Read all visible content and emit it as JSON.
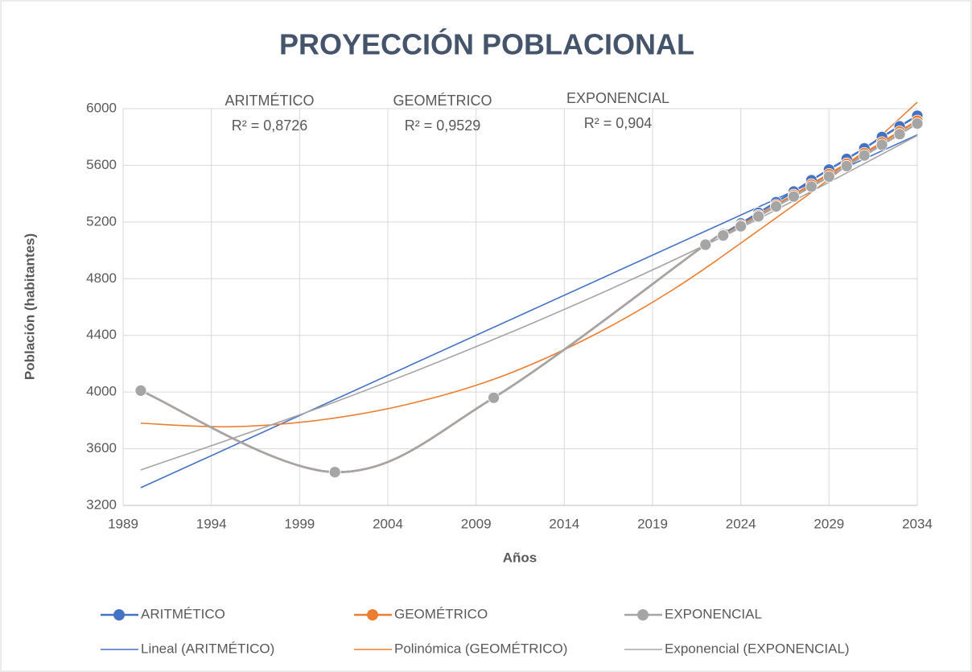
{
  "chart_data": {
    "type": "scatter",
    "title": "PROYECCIÓN POBLACIONAL",
    "x_label": "Años",
    "y_label": "Población (habitantes)",
    "xlim": [
      1989,
      2034
    ],
    "xticks": [
      1989,
      1994,
      1999,
      2004,
      2009,
      2014,
      2019,
      2024,
      2029,
      2034
    ],
    "ylim": [
      3200,
      6000
    ],
    "yticks": [
      3200,
      3600,
      4000,
      4400,
      4800,
      5200,
      5600,
      6000
    ],
    "grid": true,
    "legend": "bottom",
    "annotations": [
      {
        "lines": [
          "ARITMÉTICO",
          "R² = 0,8726"
        ]
      },
      {
        "lines": [
          "GEOMÉTRICO",
          "R² = 0,9529"
        ]
      },
      {
        "lines": [
          "EXPONENCIAL",
          "R² = 0,904"
        ]
      }
    ],
    "series": [
      {
        "name": "ARITMÉTICO",
        "color": "#4472c4",
        "style": "markers",
        "x": [
          1990,
          2001,
          2010,
          2022,
          2023,
          2024,
          2025,
          2026,
          2027,
          2028,
          2029,
          2030,
          2031,
          2032,
          2033,
          2034
        ],
        "values": [
          4010,
          3435,
          3960,
          5040,
          5115,
          5190,
          5265,
          5340,
          5415,
          5495,
          5570,
          5645,
          5720,
          5800,
          5875,
          5950
        ]
      },
      {
        "name": "GEOMÉTRICO",
        "color": "#ed7d31",
        "style": "markers",
        "x": [
          1990,
          2001,
          2010,
          2022,
          2023,
          2024,
          2025,
          2026,
          2027,
          2028,
          2029,
          2030,
          2031,
          2032,
          2033,
          2034
        ],
        "values": [
          4010,
          3435,
          3960,
          5040,
          5108,
          5178,
          5248,
          5320,
          5392,
          5465,
          5538,
          5612,
          5686,
          5762,
          5838,
          5915
        ]
      },
      {
        "name": "EXPONENCIAL",
        "color": "#a5a5a5",
        "style": "markers",
        "x": [
          1990,
          2001,
          2010,
          2022,
          2023,
          2024,
          2025,
          2026,
          2027,
          2028,
          2029,
          2030,
          2031,
          2032,
          2033,
          2034
        ],
        "values": [
          4010,
          3435,
          3960,
          5040,
          5105,
          5170,
          5240,
          5310,
          5380,
          5450,
          5520,
          5595,
          5670,
          5745,
          5820,
          5895
        ]
      },
      {
        "name": "Lineal (ARITMÉTICO)",
        "color": "#4472c4",
        "style": "trend",
        "x": [
          1990,
          2034
        ],
        "values": [
          3325,
          5815
        ]
      },
      {
        "name": "Polinómica (GEOMÉTRICO)",
        "color": "#ed7d31",
        "style": "trend",
        "x": [
          1990,
          1995,
          2000,
          2005,
          2010,
          2015,
          2020,
          2025,
          2030,
          2034
        ],
        "values": [
          3780,
          3755,
          3800,
          3910,
          4090,
          4360,
          4710,
          5140,
          5600,
          6045
        ]
      },
      {
        "name": "Exponencial (EXPONENCIAL)",
        "color": "#a5a5a5",
        "style": "trend",
        "x": [
          1990,
          2001,
          2012,
          2023,
          2034
        ],
        "values": [
          3450,
          3930,
          4476,
          5098,
          5810
        ]
      }
    ]
  }
}
